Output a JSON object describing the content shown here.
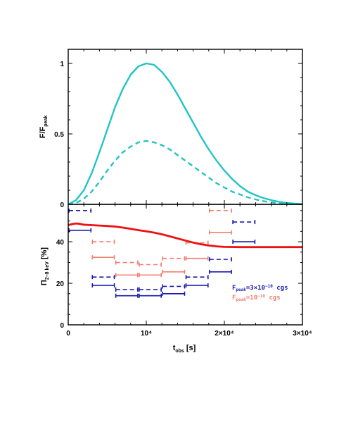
{
  "chart_data": [
    {
      "type": "line",
      "ylabel": "F/F",
      "ylabel_sub": "peak",
      "xlim": [
        0,
        30000
      ],
      "ylim": [
        0,
        1.1
      ],
      "yticks": [
        {
          "v": 0,
          "label": "0"
        },
        {
          "v": 0.5,
          "label": "0.5"
        },
        {
          "v": 1,
          "label": "1"
        }
      ],
      "grid": false,
      "series": [
        {
          "style": "solid",
          "color": "#22c4c4",
          "x": [
            0,
            1000,
            2000,
            3000,
            4000,
            5000,
            6000,
            7000,
            8000,
            9000,
            10000,
            11000,
            12000,
            13000,
            14000,
            15000,
            16000,
            17000,
            18000,
            19000,
            20000,
            21000,
            22000,
            23000,
            24000,
            25000,
            26000,
            27000,
            28000,
            29000,
            30000
          ],
          "values": [
            0,
            0.03,
            0.1,
            0.22,
            0.37,
            0.53,
            0.69,
            0.82,
            0.92,
            0.98,
            1.0,
            0.99,
            0.94,
            0.87,
            0.78,
            0.68,
            0.58,
            0.48,
            0.39,
            0.31,
            0.24,
            0.18,
            0.13,
            0.09,
            0.065,
            0.045,
            0.03,
            0.018,
            0.01,
            0.005,
            0.002
          ]
        },
        {
          "style": "dashed",
          "color": "#22c4c4",
          "x": [
            0,
            1000,
            2000,
            3000,
            4000,
            5000,
            6000,
            7000,
            8000,
            9000,
            10000,
            11000,
            12000,
            13000,
            14000,
            15000,
            16000,
            17000,
            18000,
            19000,
            20000,
            21000,
            22000,
            23000,
            24000,
            25000,
            26000,
            27000,
            28000,
            29000,
            30000
          ],
          "values": [
            0,
            0.01,
            0.04,
            0.09,
            0.16,
            0.24,
            0.31,
            0.37,
            0.41,
            0.44,
            0.45,
            0.44,
            0.42,
            0.39,
            0.35,
            0.31,
            0.27,
            0.23,
            0.19,
            0.15,
            0.12,
            0.09,
            0.07,
            0.05,
            0.035,
            0.023,
            0.014,
            0.008,
            0.004,
            0.002,
            0.001
          ]
        }
      ]
    },
    {
      "type": "line",
      "xlabel": "t",
      "xlabel_sub": "obs",
      "xlabel_unit": " [s]",
      "ylabel": "Π",
      "ylabel_sub": "2–8 keV",
      "ylabel_unit": " [%]",
      "xlim": [
        0,
        30000
      ],
      "ylim": [
        0,
        58
      ],
      "xticks": [
        {
          "v": 0,
          "label": "0"
        },
        {
          "v": 10000,
          "label": "10⁴"
        },
        {
          "v": 20000,
          "label": "2×10⁴"
        },
        {
          "v": 30000,
          "label": "3×10⁴"
        }
      ],
      "yticks": [
        {
          "v": 0,
          "label": "0"
        },
        {
          "v": 20,
          "label": "20"
        },
        {
          "v": 40,
          "label": "40"
        }
      ],
      "grid": false,
      "curve": {
        "color": "#ee1111",
        "x": [
          0,
          500,
          1000,
          1500,
          2000,
          3000,
          4000,
          5000,
          6000,
          7000,
          8000,
          9000,
          10000,
          11000,
          12000,
          13000,
          14000,
          15000,
          16000,
          17000,
          18000,
          19000,
          20000,
          22000,
          24000,
          26000,
          28000,
          30000
        ],
        "values": [
          48,
          48.5,
          48.8,
          48.6,
          48.2,
          48,
          47.8,
          47.6,
          47.3,
          46.8,
          46.2,
          45.6,
          45,
          44.4,
          43.6,
          42.6,
          41.6,
          40.6,
          39.6,
          38.8,
          38.2,
          37.8,
          37.5,
          37.4,
          37.4,
          37.4,
          37.4,
          37.4
        ]
      },
      "error_bars": [
        {
          "color": "#1a1ab0",
          "style": "dashed",
          "x0": 0,
          "x1": 3000,
          "y": 55
        },
        {
          "color": "#1a1ab0",
          "style": "solid",
          "x0": 0,
          "x1": 3000,
          "y": 45.5
        },
        {
          "color": "#1a1ab0",
          "style": "dashed",
          "x0": 3000,
          "x1": 6000,
          "y": 23
        },
        {
          "color": "#1a1ab0",
          "style": "solid",
          "x0": 3000,
          "x1": 6000,
          "y": 19
        },
        {
          "color": "#1a1ab0",
          "style": "dashed",
          "x0": 6000,
          "x1": 9000,
          "y": 17
        },
        {
          "color": "#1a1ab0",
          "style": "solid",
          "x0": 6000,
          "x1": 9000,
          "y": 14
        },
        {
          "color": "#1a1ab0",
          "style": "dashed",
          "x0": 9000,
          "x1": 12000,
          "y": 17
        },
        {
          "color": "#1a1ab0",
          "style": "solid",
          "x0": 9000,
          "x1": 12000,
          "y": 14
        },
        {
          "color": "#1a1ab0",
          "style": "dashed",
          "x0": 12000,
          "x1": 15000,
          "y": 18.5
        },
        {
          "color": "#1a1ab0",
          "style": "solid",
          "x0": 12000,
          "x1": 15000,
          "y": 15
        },
        {
          "color": "#1a1ab0",
          "style": "dashed",
          "x0": 15000,
          "x1": 18000,
          "y": 23
        },
        {
          "color": "#1a1ab0",
          "style": "solid",
          "x0": 15000,
          "x1": 18000,
          "y": 19
        },
        {
          "color": "#1a1ab0",
          "style": "dashed",
          "x0": 18000,
          "x1": 21000,
          "y": 31.5
        },
        {
          "color": "#1a1ab0",
          "style": "solid",
          "x0": 18000,
          "x1": 21000,
          "y": 25.5
        },
        {
          "color": "#1a1ab0",
          "style": "dashed",
          "x0": 21000,
          "x1": 24000,
          "y": 49.5
        },
        {
          "color": "#1a1ab0",
          "style": "solid",
          "x0": 21000,
          "x1": 24000,
          "y": 40
        },
        {
          "color": "#f08070",
          "style": "dashed",
          "x0": 3000,
          "x1": 6000,
          "y": 40
        },
        {
          "color": "#f08070",
          "style": "solid",
          "x0": 3000,
          "x1": 6000,
          "y": 32.5
        },
        {
          "color": "#f08070",
          "style": "dashed",
          "x0": 6000,
          "x1": 9000,
          "y": 30
        },
        {
          "color": "#f08070",
          "style": "solid",
          "x0": 6000,
          "x1": 9000,
          "y": 24
        },
        {
          "color": "#f08070",
          "style": "dashed",
          "x0": 9000,
          "x1": 12000,
          "y": 29
        },
        {
          "color": "#f08070",
          "style": "solid",
          "x0": 9000,
          "x1": 12000,
          "y": 24
        },
        {
          "color": "#f08070",
          "style": "dashed",
          "x0": 12000,
          "x1": 15000,
          "y": 32
        },
        {
          "color": "#f08070",
          "style": "solid",
          "x0": 12000,
          "x1": 15000,
          "y": 25.5
        },
        {
          "color": "#f08070",
          "style": "dashed",
          "x0": 15000,
          "x1": 18000,
          "y": 39.5
        },
        {
          "color": "#f08070",
          "style": "solid",
          "x0": 15000,
          "x1": 18000,
          "y": 32
        },
        {
          "color": "#f08070",
          "style": "dashed",
          "x0": 18000,
          "x1": 21000,
          "y": 55
        },
        {
          "color": "#f08070",
          "style": "solid",
          "x0": 18000,
          "x1": 21000,
          "y": 44.5
        }
      ],
      "legend": {
        "placement": "lower-right",
        "entries": [
          {
            "color": "#1a1ab0",
            "main": "F",
            "sub": "peak",
            "rest": "=3×10",
            "sup": "−10",
            "tail": " cgs"
          },
          {
            "color": "#f08070",
            "main": "F",
            "sub": "peak",
            "rest": "=10",
            "sup": "−10",
            "tail": " cgs"
          }
        ]
      }
    }
  ]
}
